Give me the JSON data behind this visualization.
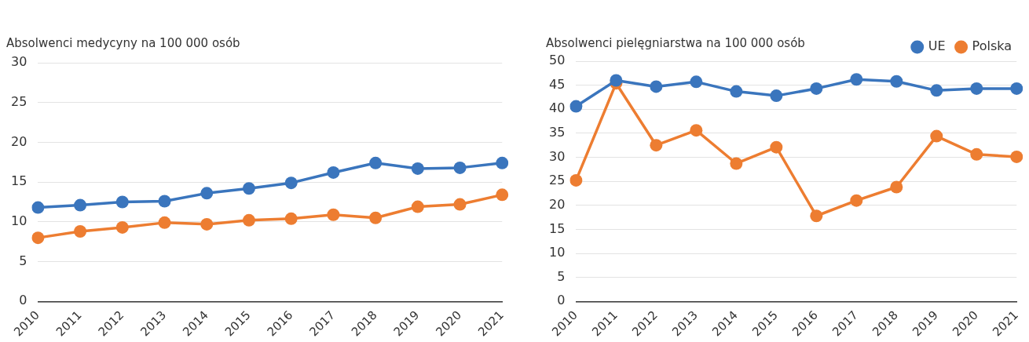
{
  "chart_data": [
    {
      "type": "line",
      "ylabel": "Absolwenci medycyny na 100 000 osób",
      "categories": [
        "2010",
        "2011",
        "2012",
        "2013",
        "2014",
        "2015",
        "2016",
        "2017",
        "2018",
        "2019",
        "2020",
        "2021"
      ],
      "ylim": [
        0,
        30
      ],
      "yticks": [
        0,
        5,
        10,
        15,
        20,
        25,
        30
      ],
      "grid": "y",
      "legend": false,
      "marker": "circle",
      "line_style": "solid",
      "series": [
        {
          "color": "#ed7d31",
          "values": [
            8.0,
            8.8,
            9.3,
            9.9,
            9.7,
            10.2,
            10.4,
            10.9,
            10.5,
            11.9,
            12.2,
            13.4
          ]
        },
        {
          "color": "#3a75bd",
          "values": [
            11.8,
            12.1,
            12.5,
            12.6,
            13.6,
            14.2,
            14.9,
            16.2,
            17.4,
            16.7,
            16.8,
            17.4
          ]
        }
      ]
    },
    {
      "type": "line",
      "ylabel": "Absolwenci pielęgniarstwa na 100 000 osób",
      "categories": [
        "2010",
        "2011",
        "2012",
        "2013",
        "2014",
        "2015",
        "2016",
        "2017",
        "2018",
        "2019",
        "2020",
        "2021"
      ],
      "ylim": [
        0,
        50
      ],
      "yticks": [
        0,
        5,
        10,
        15,
        20,
        25,
        30,
        35,
        40,
        45,
        50
      ],
      "grid": "y",
      "legend": "top right",
      "marker": "circle",
      "line_style": "solid",
      "series": [
        {
          "name": "Polska",
          "color": "#ed7d31",
          "values": [
            25.2,
            45.4,
            32.5,
            35.6,
            28.7,
            32.1,
            17.8,
            21.0,
            23.8,
            34.4,
            30.6,
            30.1
          ]
        },
        {
          "name": "UE",
          "color": "#3a75bd",
          "values": [
            40.6,
            46.0,
            44.7,
            45.7,
            43.7,
            42.8,
            44.3,
            46.2,
            45.8,
            43.9,
            44.3,
            44.3
          ]
        }
      ]
    }
  ]
}
